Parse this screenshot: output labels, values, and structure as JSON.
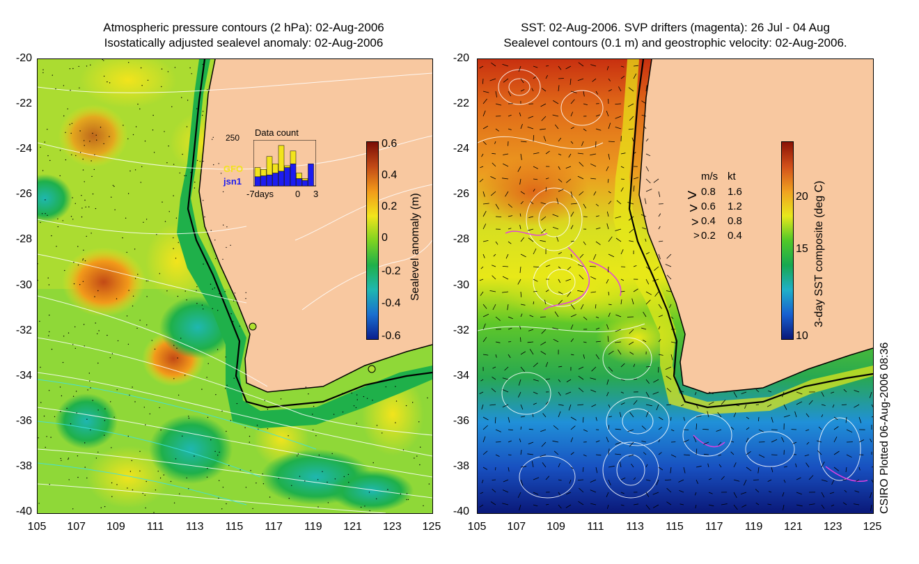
{
  "left_panel": {
    "title_line1": "Atmospheric pressure contours (2 hPa): 02-Aug-2006",
    "title_line2": "Isostatically adjusted sealevel anomaly: 02-Aug-2006",
    "colorbar_label": "Sealevel anomaly (m)",
    "colorbar_ticks": [
      "0.6",
      "0.4",
      "0.2",
      "0",
      "-0.2",
      "-0.4",
      "-0.6"
    ],
    "colorbar_colors": [
      "#7a0d05",
      "#c24a16",
      "#f29a1a",
      "#f2e41c",
      "#7ed321",
      "#1fb04a",
      "#1fb7b0",
      "#1a6fcf",
      "#0a1f8f"
    ],
    "inset": {
      "title": "Data count",
      "ymax_label": "250",
      "satellite_1": "GFO",
      "satellite_2": "jsn1",
      "xlabel_left": "-7days",
      "xlabel_mid": "0",
      "xlabel_right": "3",
      "gfo_counts": [
        100,
        90,
        160,
        120,
        220,
        110,
        190,
        70,
        40,
        0
      ],
      "jsn1_counts": [
        50,
        55,
        60,
        70,
        80,
        100,
        120,
        40,
        30,
        120
      ]
    }
  },
  "right_panel": {
    "title_line1": "SST: 02-Aug-2006. SVP drifters (magenta): 26 Jul - 04 Aug",
    "title_line2": "Sealevel contours (0.1 m) and geostrophic velocity: 02-Aug-2006.",
    "colorbar_label": "3-day SST composite (deg C)",
    "colorbar_ticks": [
      "20",
      "15",
      "10"
    ],
    "colorbar_colors": [
      "#8a1205",
      "#d2501a",
      "#f0a020",
      "#e8e81c",
      "#50c828",
      "#18a850",
      "#20b0c8",
      "#1860d0",
      "#0a1878"
    ],
    "speed_legend": {
      "header_ms": "m/s",
      "header_kt": "kt",
      "rows": [
        {
          "ms": "0.8",
          "kt": "1.6"
        },
        {
          "ms": "0.6",
          "kt": "1.2"
        },
        {
          "ms": "0.4",
          "kt": "0.8"
        },
        {
          "ms": "0.2",
          "kt": "0.4"
        }
      ]
    }
  },
  "axes": {
    "lat_ticks": [
      "-20",
      "-22",
      "-24",
      "-26",
      "-28",
      "-30",
      "-32",
      "-34",
      "-36",
      "-38",
      "-40"
    ],
    "lon_ticks": [
      "105",
      "107",
      "109",
      "111",
      "113",
      "115",
      "117",
      "119",
      "121",
      "123",
      "125"
    ]
  },
  "map": {
    "land_color": "#f8c8a0",
    "drifter_color": "#e040e0"
  },
  "credit": "CSIRO Plotted 06-Aug-2006 08:36"
}
